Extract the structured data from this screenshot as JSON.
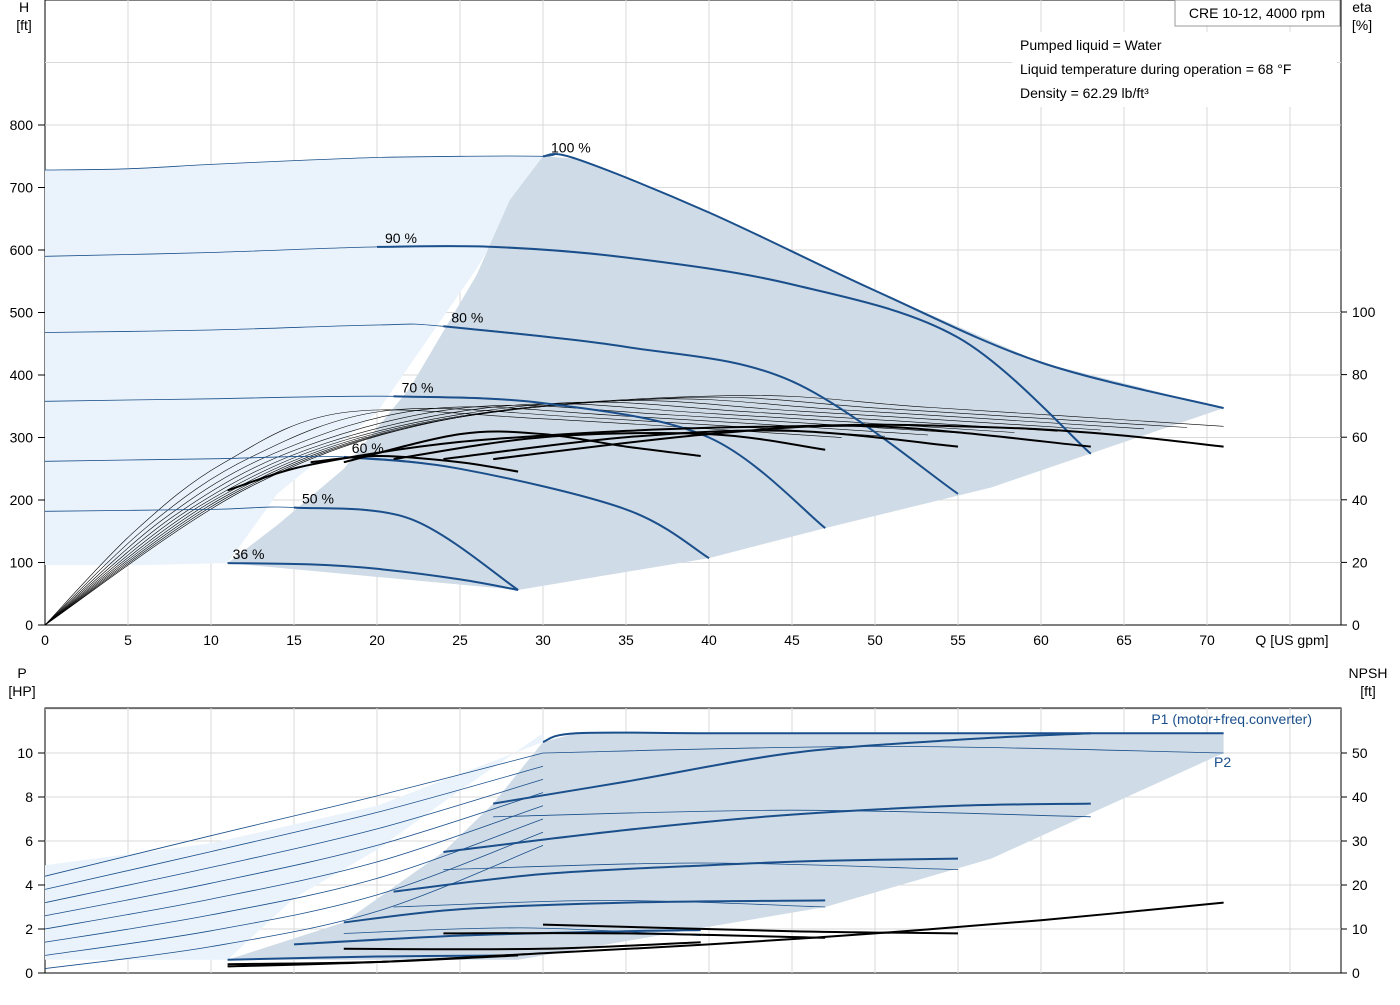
{
  "model": "CRE 10-12, 4000 rpm",
  "info": {
    "liquid": "Pumped liquid = Water",
    "temperature": "Liquid temperature during operation = 68 °F",
    "density": "Density = 62.29 lb/ft³"
  },
  "colors": {
    "curve": "#1a4f8b",
    "region_light": "#eaf3fb",
    "region_dark": "#cfdbe6",
    "grid": "#d9d9d9"
  },
  "chart_data": [
    {
      "type": "line",
      "name": "head-efficiency",
      "ylabel_left": [
        "H",
        "[ft]"
      ],
      "ylabel_right": [
        "eta",
        "[%]"
      ],
      "xlabel": "Q [US gpm]",
      "xlim": [
        0,
        78
      ],
      "ylim": [
        0,
        800
      ],
      "y_right_lim": [
        0,
        160
      ],
      "x_ticks": [
        0,
        5,
        10,
        15,
        20,
        25,
        30,
        35,
        40,
        45,
        50,
        55,
        60,
        65,
        70
      ],
      "y_ticks": [
        0,
        100,
        200,
        300,
        400,
        500,
        600,
        700,
        800
      ],
      "y_right_ticks": [
        0,
        20,
        40,
        60,
        80,
        100
      ],
      "speed_curves": [
        {
          "name": "100 %",
          "x": [
            0,
            5,
            10,
            15,
            20,
            25,
            30,
            32,
            40,
            50,
            60,
            71
          ],
          "y": [
            728,
            730,
            737,
            743,
            748,
            750,
            750,
            746,
            660,
            535,
            420,
            347
          ]
        },
        {
          "name": "90 %",
          "x": [
            0,
            10,
            20,
            27,
            35,
            45,
            55,
            63
          ],
          "y": [
            590,
            596,
            605,
            605,
            588,
            545,
            460,
            274
          ]
        },
        {
          "name": "80 %",
          "x": [
            0,
            10,
            20,
            24,
            35,
            45,
            55
          ],
          "y": [
            468,
            472,
            480,
            478,
            445,
            390,
            210
          ]
        },
        {
          "name": "70 %",
          "x": [
            0,
            10,
            21,
            30,
            40,
            47
          ],
          "y": [
            358,
            362,
            366,
            355,
            300,
            155
          ]
        },
        {
          "name": "60 %",
          "x": [
            0,
            10,
            18,
            25,
            35,
            40
          ],
          "y": [
            262,
            266,
            269,
            250,
            185,
            107
          ]
        },
        {
          "name": "50 %",
          "x": [
            0,
            10,
            15,
            22,
            28.5
          ],
          "y": [
            182,
            185,
            188,
            170,
            56
          ]
        },
        {
          "name": "36 %",
          "x": [
            11,
            16,
            20,
            25,
            28.5
          ],
          "y": [
            99,
            97,
            90,
            73,
            56
          ]
        }
      ],
      "efficiency_curves": [
        {
          "x": [
            11,
            15,
            20,
            25,
            30,
            35,
            40,
            45,
            50,
            55,
            60,
            65,
            71
          ],
          "y": [
            43,
            50,
            55,
            58.5,
            60.5,
            62,
            63,
            63.5,
            64,
            63.5,
            62.5,
            60.5,
            57
          ]
        },
        {
          "x": [
            18,
            25,
            30,
            35,
            39.5
          ],
          "y": [
            52,
            61,
            61,
            57,
            54
          ]
        },
        {
          "x": [
            21,
            30,
            40,
            47
          ],
          "y": [
            53,
            60,
            61,
            56
          ]
        },
        {
          "x": [
            24,
            35,
            45,
            55
          ],
          "y": [
            53,
            60,
            62,
            57
          ]
        },
        {
          "x": [
            27,
            40,
            50,
            63
          ],
          "y": [
            53,
            61,
            63.5,
            57
          ]
        },
        {
          "x": [
            16,
            20,
            25,
            28.5
          ],
          "y": [
            52,
            54,
            52,
            49
          ]
        }
      ]
    },
    {
      "type": "line",
      "name": "power-npsh",
      "ylabel_left": [
        "P",
        "[HP]"
      ],
      "ylabel_right": [
        "NPSH",
        "[ft]"
      ],
      "xlim": [
        0,
        78
      ],
      "ylim": [
        0,
        12
      ],
      "y_right_lim": [
        0,
        60
      ],
      "y_ticks": [
        0,
        2,
        4,
        6,
        8,
        10
      ],
      "y_right_ticks": [
        0,
        10,
        20,
        30,
        40,
        50
      ],
      "series_labels": [
        "P1 (motor+freq.converter)",
        "P2"
      ],
      "p1_curves": [
        {
          "x": [
            30,
            32,
            40,
            50,
            60,
            71
          ],
          "y": [
            10.5,
            10.9,
            10.9,
            10.9,
            10.9,
            10.9
          ]
        },
        {
          "x": [
            27,
            35,
            45,
            55,
            63
          ],
          "y": [
            7.7,
            8.7,
            10.0,
            10.6,
            10.9
          ]
        },
        {
          "x": [
            24,
            35,
            45,
            55,
            63
          ],
          "y": [
            5.5,
            6.5,
            7.2,
            7.6,
            7.7
          ]
        },
        {
          "x": [
            21,
            30,
            40,
            47,
            55
          ],
          "y": [
            3.7,
            4.5,
            4.9,
            5.1,
            5.2
          ]
        },
        {
          "x": [
            18,
            25,
            35,
            47
          ],
          "y": [
            2.3,
            2.9,
            3.2,
            3.3
          ]
        },
        {
          "x": [
            15,
            25,
            35,
            39.5
          ],
          "y": [
            1.3,
            1.7,
            1.9,
            1.95
          ]
        },
        {
          "x": [
            11,
            20,
            28.5
          ],
          "y": [
            0.6,
            0.75,
            0.8
          ]
        }
      ],
      "npsh_curve": {
        "x": [
          11,
          20,
          30,
          40,
          50,
          60,
          71
        ],
        "y": [
          1.5,
          2.5,
          4.5,
          6.5,
          9.0,
          12.0,
          16.0
        ]
      }
    }
  ]
}
